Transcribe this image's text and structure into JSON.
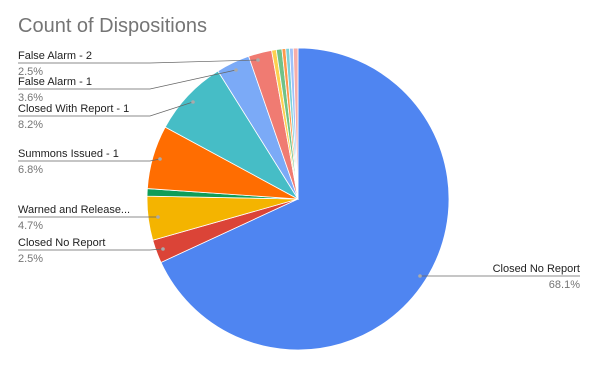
{
  "chart_data": {
    "type": "pie",
    "title": "Count of Dispositions",
    "categories": [
      "Closed No Report",
      "Closed No Report",
      "Warned and Release...",
      null,
      "Summons Issued - 1",
      "Closed With Report - 1",
      "False Alarm - 1",
      "False Alarm - 2",
      null,
      null,
      null,
      null,
      null,
      null
    ],
    "values": [
      68.1,
      2.5,
      4.7,
      0.8,
      6.8,
      8.2,
      3.6,
      2.5,
      0.5,
      0.6,
      0.4,
      0.4,
      0.4,
      0.5
    ],
    "value_labels": [
      "68.1%",
      "2.5%",
      "4.7%",
      null,
      "6.8%",
      "8.2%",
      "3.6%",
      "2.5%",
      null,
      null,
      null,
      null,
      null,
      null
    ],
    "colors": [
      "#4f85f1",
      "#db4437",
      "#f4b400",
      "#0f9d58",
      "#ff6d01",
      "#46bdc6",
      "#7baaf7",
      "#f07b72",
      "#fcd04f",
      "#71c287",
      "#ff994d",
      "#7ed1d7",
      "#a0c2f9",
      "#f6aea9"
    ]
  }
}
